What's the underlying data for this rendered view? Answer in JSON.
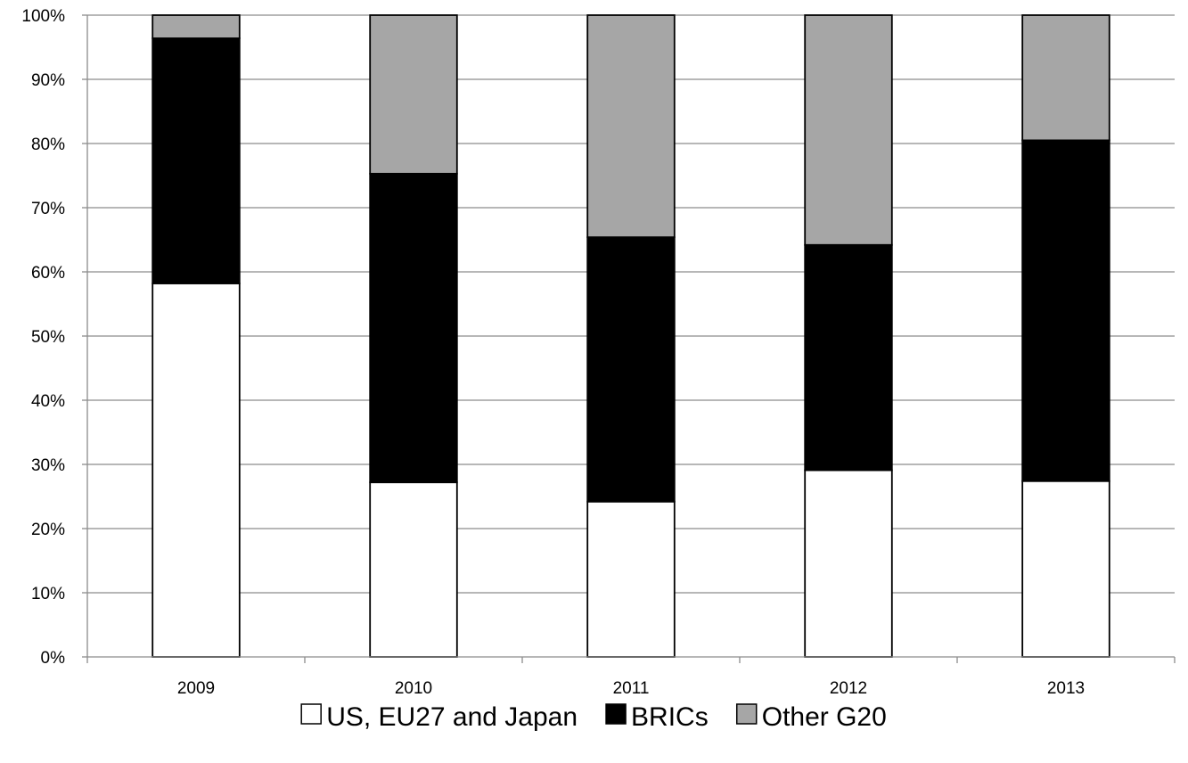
{
  "chart_data": {
    "type": "bar",
    "stacked": true,
    "percent": true,
    "categories": [
      "2009",
      "2010",
      "2011",
      "2012",
      "2013"
    ],
    "series": [
      {
        "name": "US, EU27 and Japan",
        "color": "#ffffff",
        "values": [
          58.2,
          27.2,
          24.2,
          29.1,
          27.4
        ]
      },
      {
        "name": "BRICs",
        "color": "#000000",
        "values": [
          38.2,
          48.1,
          41.2,
          35.1,
          53.1
        ]
      },
      {
        "name": "Other G20",
        "color": "#a6a6a6",
        "values": [
          3.6,
          24.7,
          34.6,
          35.8,
          19.5
        ]
      }
    ],
    "ylim": [
      0,
      100
    ],
    "yticks": [
      "0%",
      "10%",
      "20%",
      "30%",
      "40%",
      "50%",
      "60%",
      "70%",
      "80%",
      "90%",
      "100%"
    ],
    "grid": true,
    "legend_position": "bottom",
    "title": "",
    "xlabel": "",
    "ylabel": ""
  }
}
